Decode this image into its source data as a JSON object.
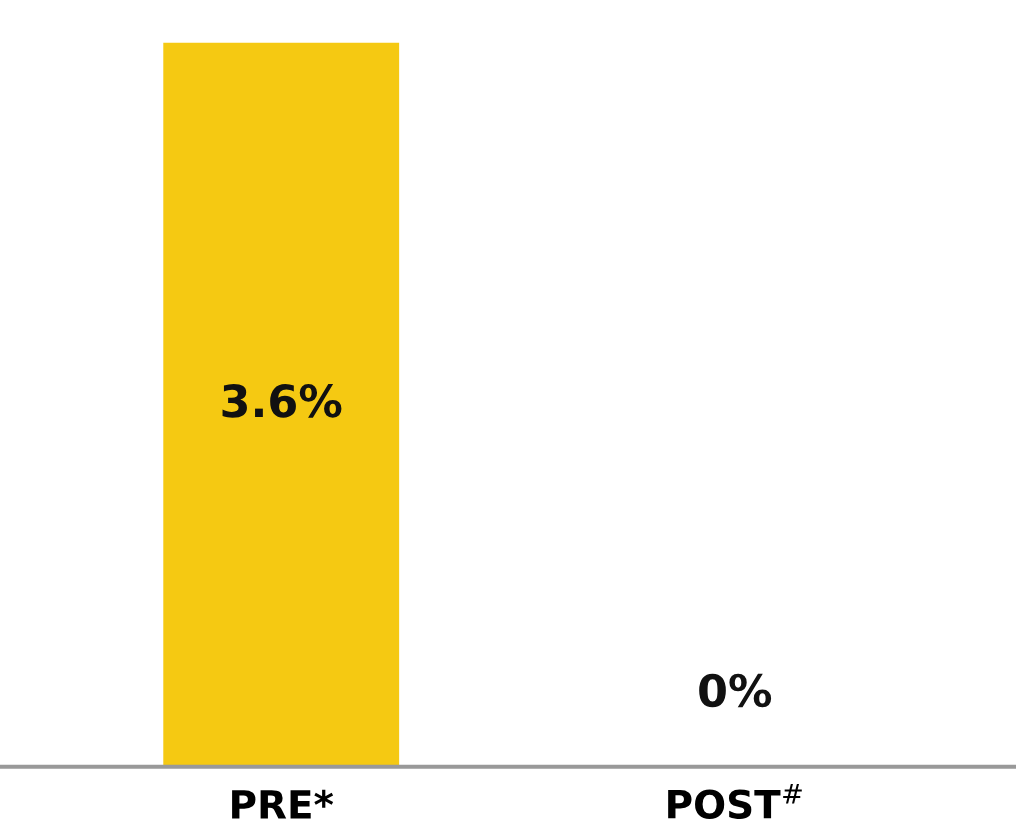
{
  "chart_data": {
    "type": "bar",
    "categories": [
      "PRE*",
      "POST$^{#}$"
    ],
    "values": [
      3.6,
      0
    ],
    "value_labels": [
      "3.6%",
      "0%"
    ],
    "color": "#f5c912",
    "grid": false,
    "legend": false
  }
}
